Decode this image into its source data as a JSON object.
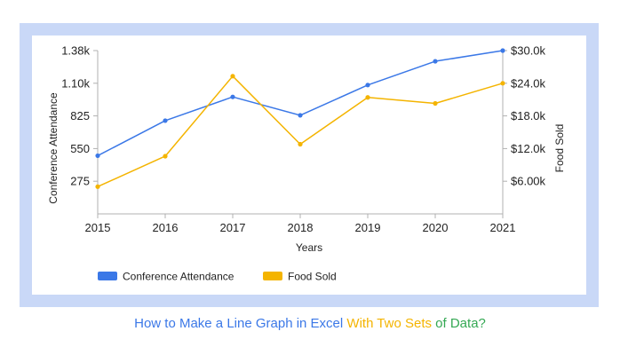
{
  "caption": {
    "part1": "How to Make a Line Graph in Excel",
    "part2": "With Two Sets",
    "part3": "of Data?",
    "colors": [
      "#3b78e7",
      "#f4b400",
      "#34a853"
    ]
  },
  "chart_data": {
    "type": "line",
    "title": "",
    "xlabel": "Years",
    "ylabel_left": "Conference Attendance",
    "ylabel_right": "Food Sold",
    "categories": [
      "2015",
      "2016",
      "2017",
      "2018",
      "2019",
      "2020",
      "2021"
    ],
    "left_axis": {
      "ylim": [
        0,
        1375
      ],
      "ticks": [
        275,
        550,
        825,
        1100,
        1375
      ],
      "tick_labels": [
        "275",
        "550",
        "825",
        "1.10k",
        "1.38k"
      ]
    },
    "right_axis": {
      "ylim": [
        0,
        30000
      ],
      "ticks": [
        6000,
        12000,
        18000,
        24000,
        30000
      ],
      "tick_labels": [
        "$6.00k",
        "$12.0k",
        "$18.0k",
        "$24.0k",
        "$30.0k"
      ]
    },
    "series": [
      {
        "name": "Conference Attendance",
        "axis": "left",
        "color": "#3b78e7",
        "values": [
          490,
          785,
          985,
          830,
          1085,
          1285,
          1375
        ]
      },
      {
        "name": "Food Sold",
        "axis": "right",
        "color": "#f4b400",
        "values": [
          5000,
          10600,
          25300,
          12800,
          21400,
          20300,
          24000
        ]
      }
    ],
    "grid": false,
    "legend_position": "bottom-left"
  }
}
